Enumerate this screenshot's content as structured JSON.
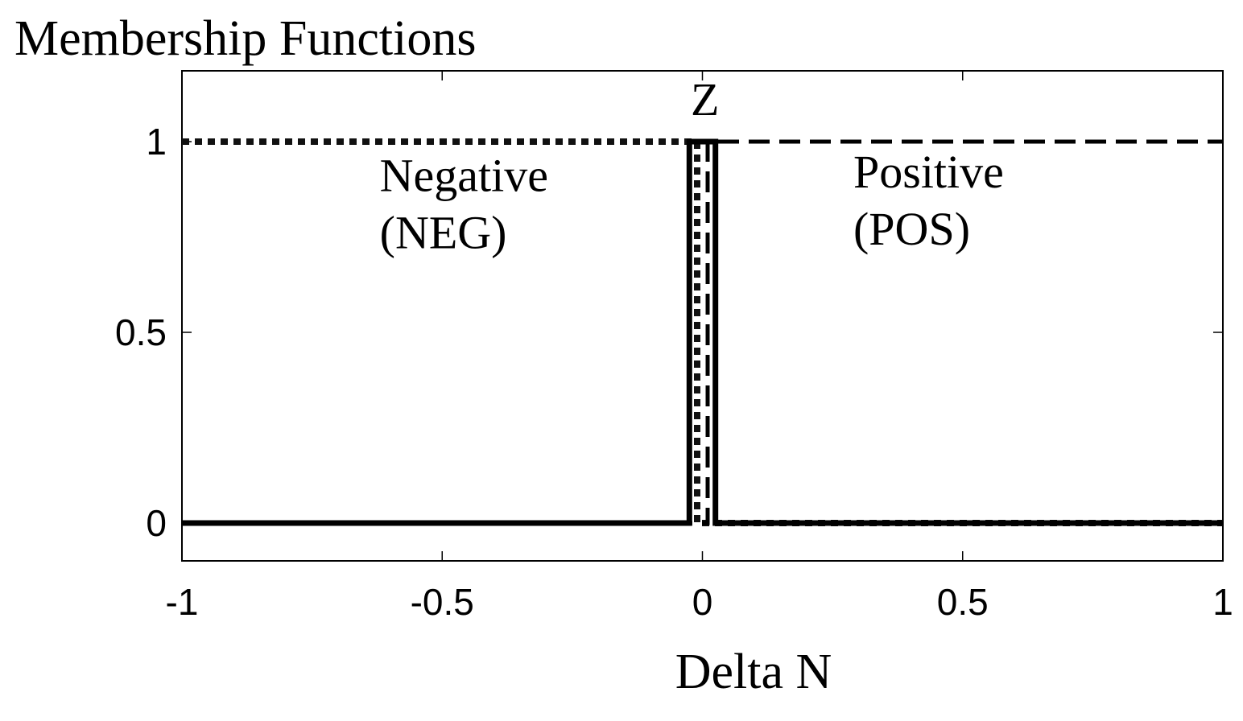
{
  "chart_data": {
    "type": "line",
    "title": "Membership Functions",
    "xlabel": "Delta N",
    "ylabel": "",
    "xlim": [
      -1,
      1
    ],
    "ylim": [
      -0.1,
      1.18
    ],
    "xticks": [
      -1,
      -0.5,
      0,
      0.5,
      1
    ],
    "xtick_labels": [
      "-1",
      "-0.5",
      "0",
      "0.5",
      "1"
    ],
    "yticks": [
      0,
      0.5,
      1
    ],
    "ytick_labels": [
      "0",
      "0.5",
      "1"
    ],
    "grid": false,
    "legend": "none",
    "series": [
      {
        "style": "dotted",
        "x": [
          -1,
          -0.01,
          -0.01,
          0.01,
          0.01,
          1
        ],
        "y": [
          1,
          1,
          0,
          0,
          0,
          0
        ]
      },
      {
        "style": "solid",
        "x": [
          -1,
          -0.025,
          -0.025,
          0.025,
          0.025,
          1
        ],
        "y": [
          0,
          0,
          1,
          1,
          0,
          0
        ]
      },
      {
        "style": "dashed",
        "x": [
          -1,
          -0.01,
          -0.01,
          0.01,
          0.01,
          1
        ],
        "y": [
          0,
          0,
          0,
          0,
          1,
          1
        ]
      }
    ],
    "annotations": [
      {
        "id": "neg-line1",
        "text": "Negative",
        "x": -0.62,
        "y": 0.87
      },
      {
        "id": "neg-line2",
        "text": "(NEG)",
        "x": -0.62,
        "y": 0.72
      },
      {
        "id": "z",
        "text": "Z",
        "x": 0.005,
        "y": 1.07
      },
      {
        "id": "pos-line1",
        "text": "Positive",
        "x": 0.29,
        "y": 0.88
      },
      {
        "id": "pos-line2",
        "text": "(POS)",
        "x": 0.29,
        "y": 0.73
      }
    ]
  }
}
